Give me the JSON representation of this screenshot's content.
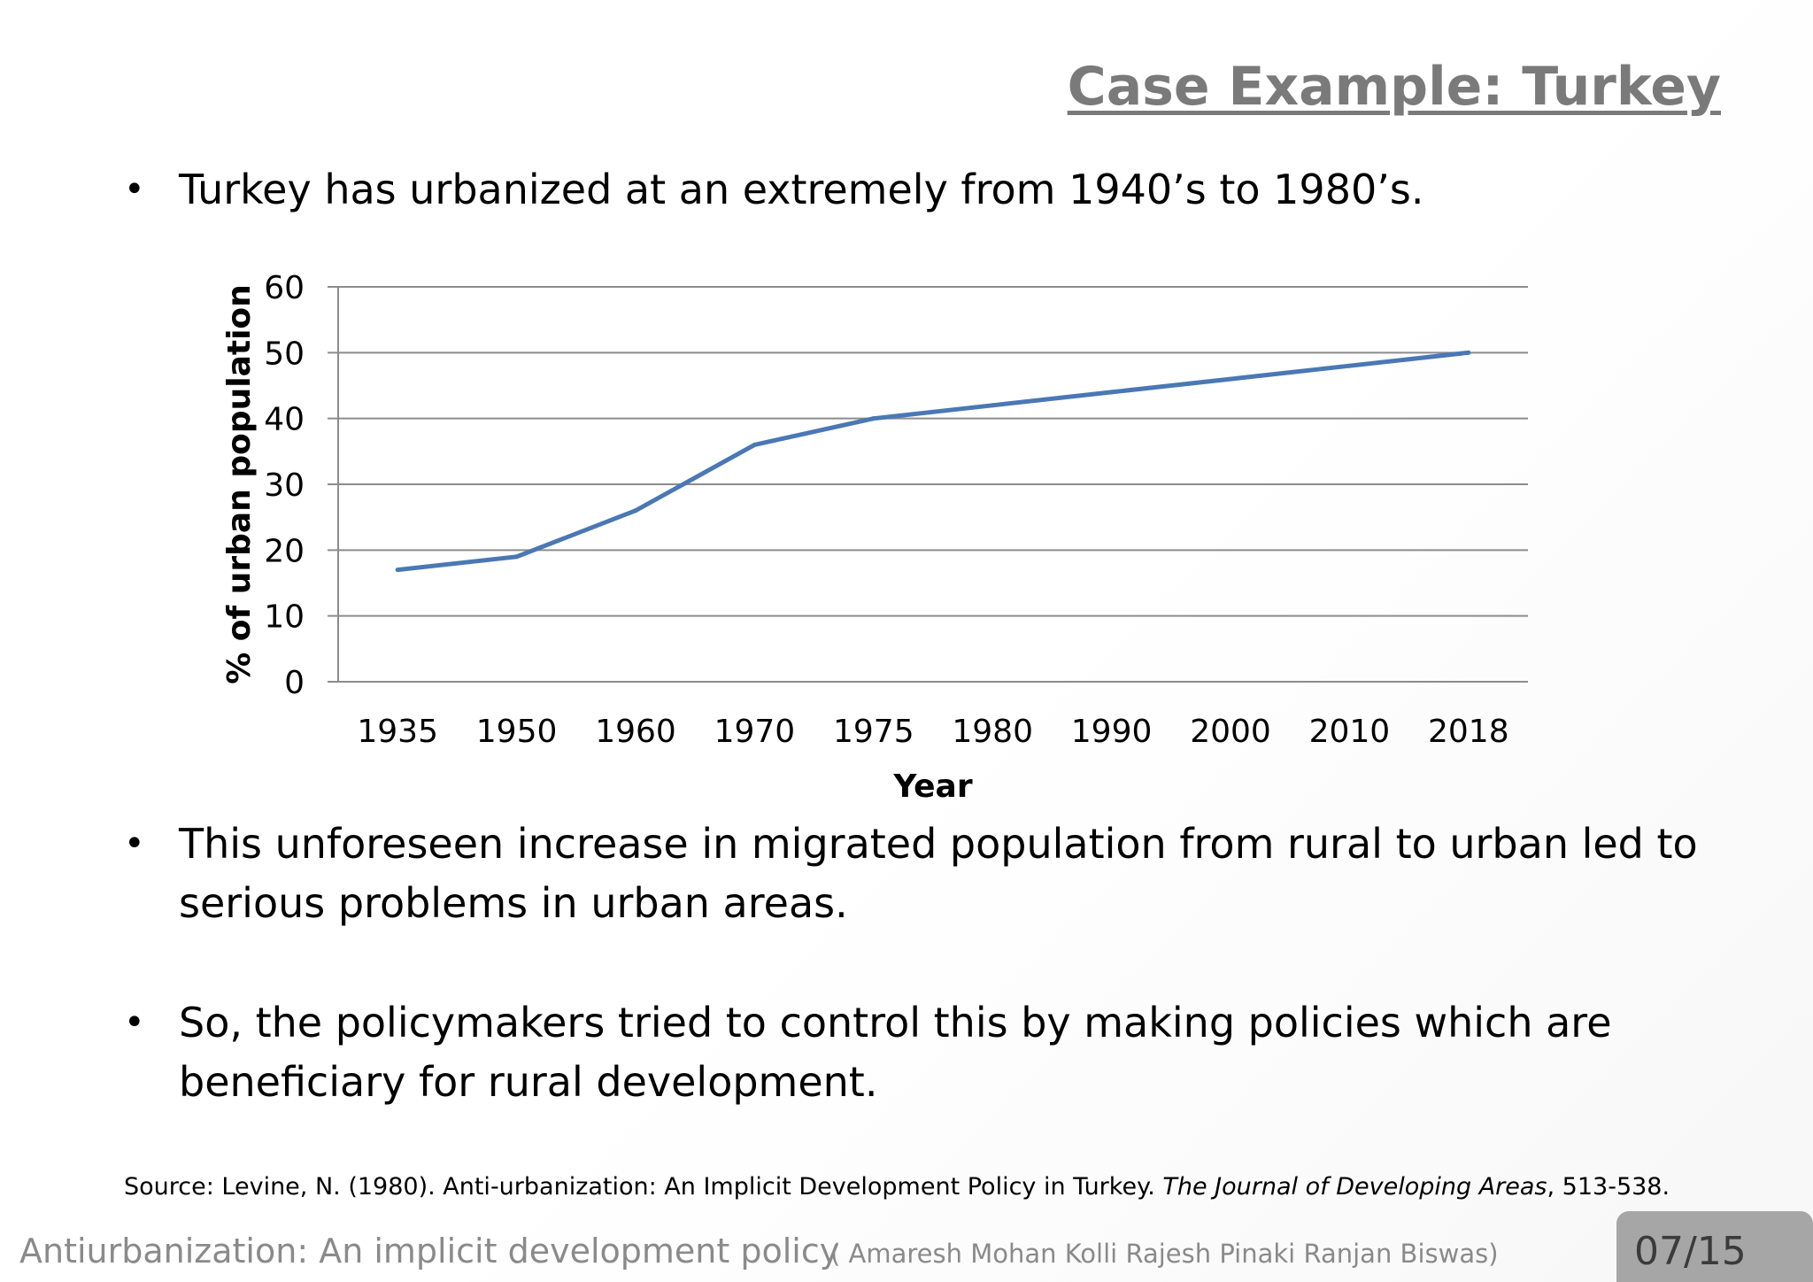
{
  "slide": {
    "title": "Case Example: Turkey",
    "bullets": [
      "Turkey has urbanized at an extremely from 1940’s to 1980’s.",
      "This unforeseen increase in migrated population from rural to urban led to serious problems in urban areas.",
      "So, the policymakers tried to control this by making policies which are beneficiary for rural development."
    ],
    "bullet_symbol": "•"
  },
  "source": {
    "prefix": "Source: Levine, N. (1980). Anti-urbanization: An Implicit Development Policy in Turkey. ",
    "journal": "The Journal of Developing Areas",
    "suffix": ", 513-538."
  },
  "footer": {
    "title": "Antiurbanization: An implicit development policy",
    "authors": "( Amaresh Mohan     Kolli Rajesh    Pinaki Ranjan Biswas)",
    "page": "07/15"
  },
  "colors": {
    "series_line": "#4a78b4",
    "gridline": "#8c8c8c",
    "title_gray": "#7a7a7a",
    "page_box": "#a6a6a6"
  },
  "chart_data": {
    "type": "line",
    "title": "",
    "xlabel": "Year",
    "ylabel": "% of urban population",
    "categories": [
      "1935",
      "1950",
      "1960",
      "1970",
      "1975",
      "1980",
      "1990",
      "2000",
      "2010",
      "2018"
    ],
    "series": [
      {
        "values": [
          17,
          19,
          26,
          36,
          40,
          42,
          44,
          46,
          48,
          50
        ]
      }
    ],
    "ylim": [
      0,
      60
    ],
    "yticks": [
      0,
      10,
      20,
      30,
      40,
      50,
      60
    ],
    "grid": "horizontal",
    "legend": "none"
  }
}
